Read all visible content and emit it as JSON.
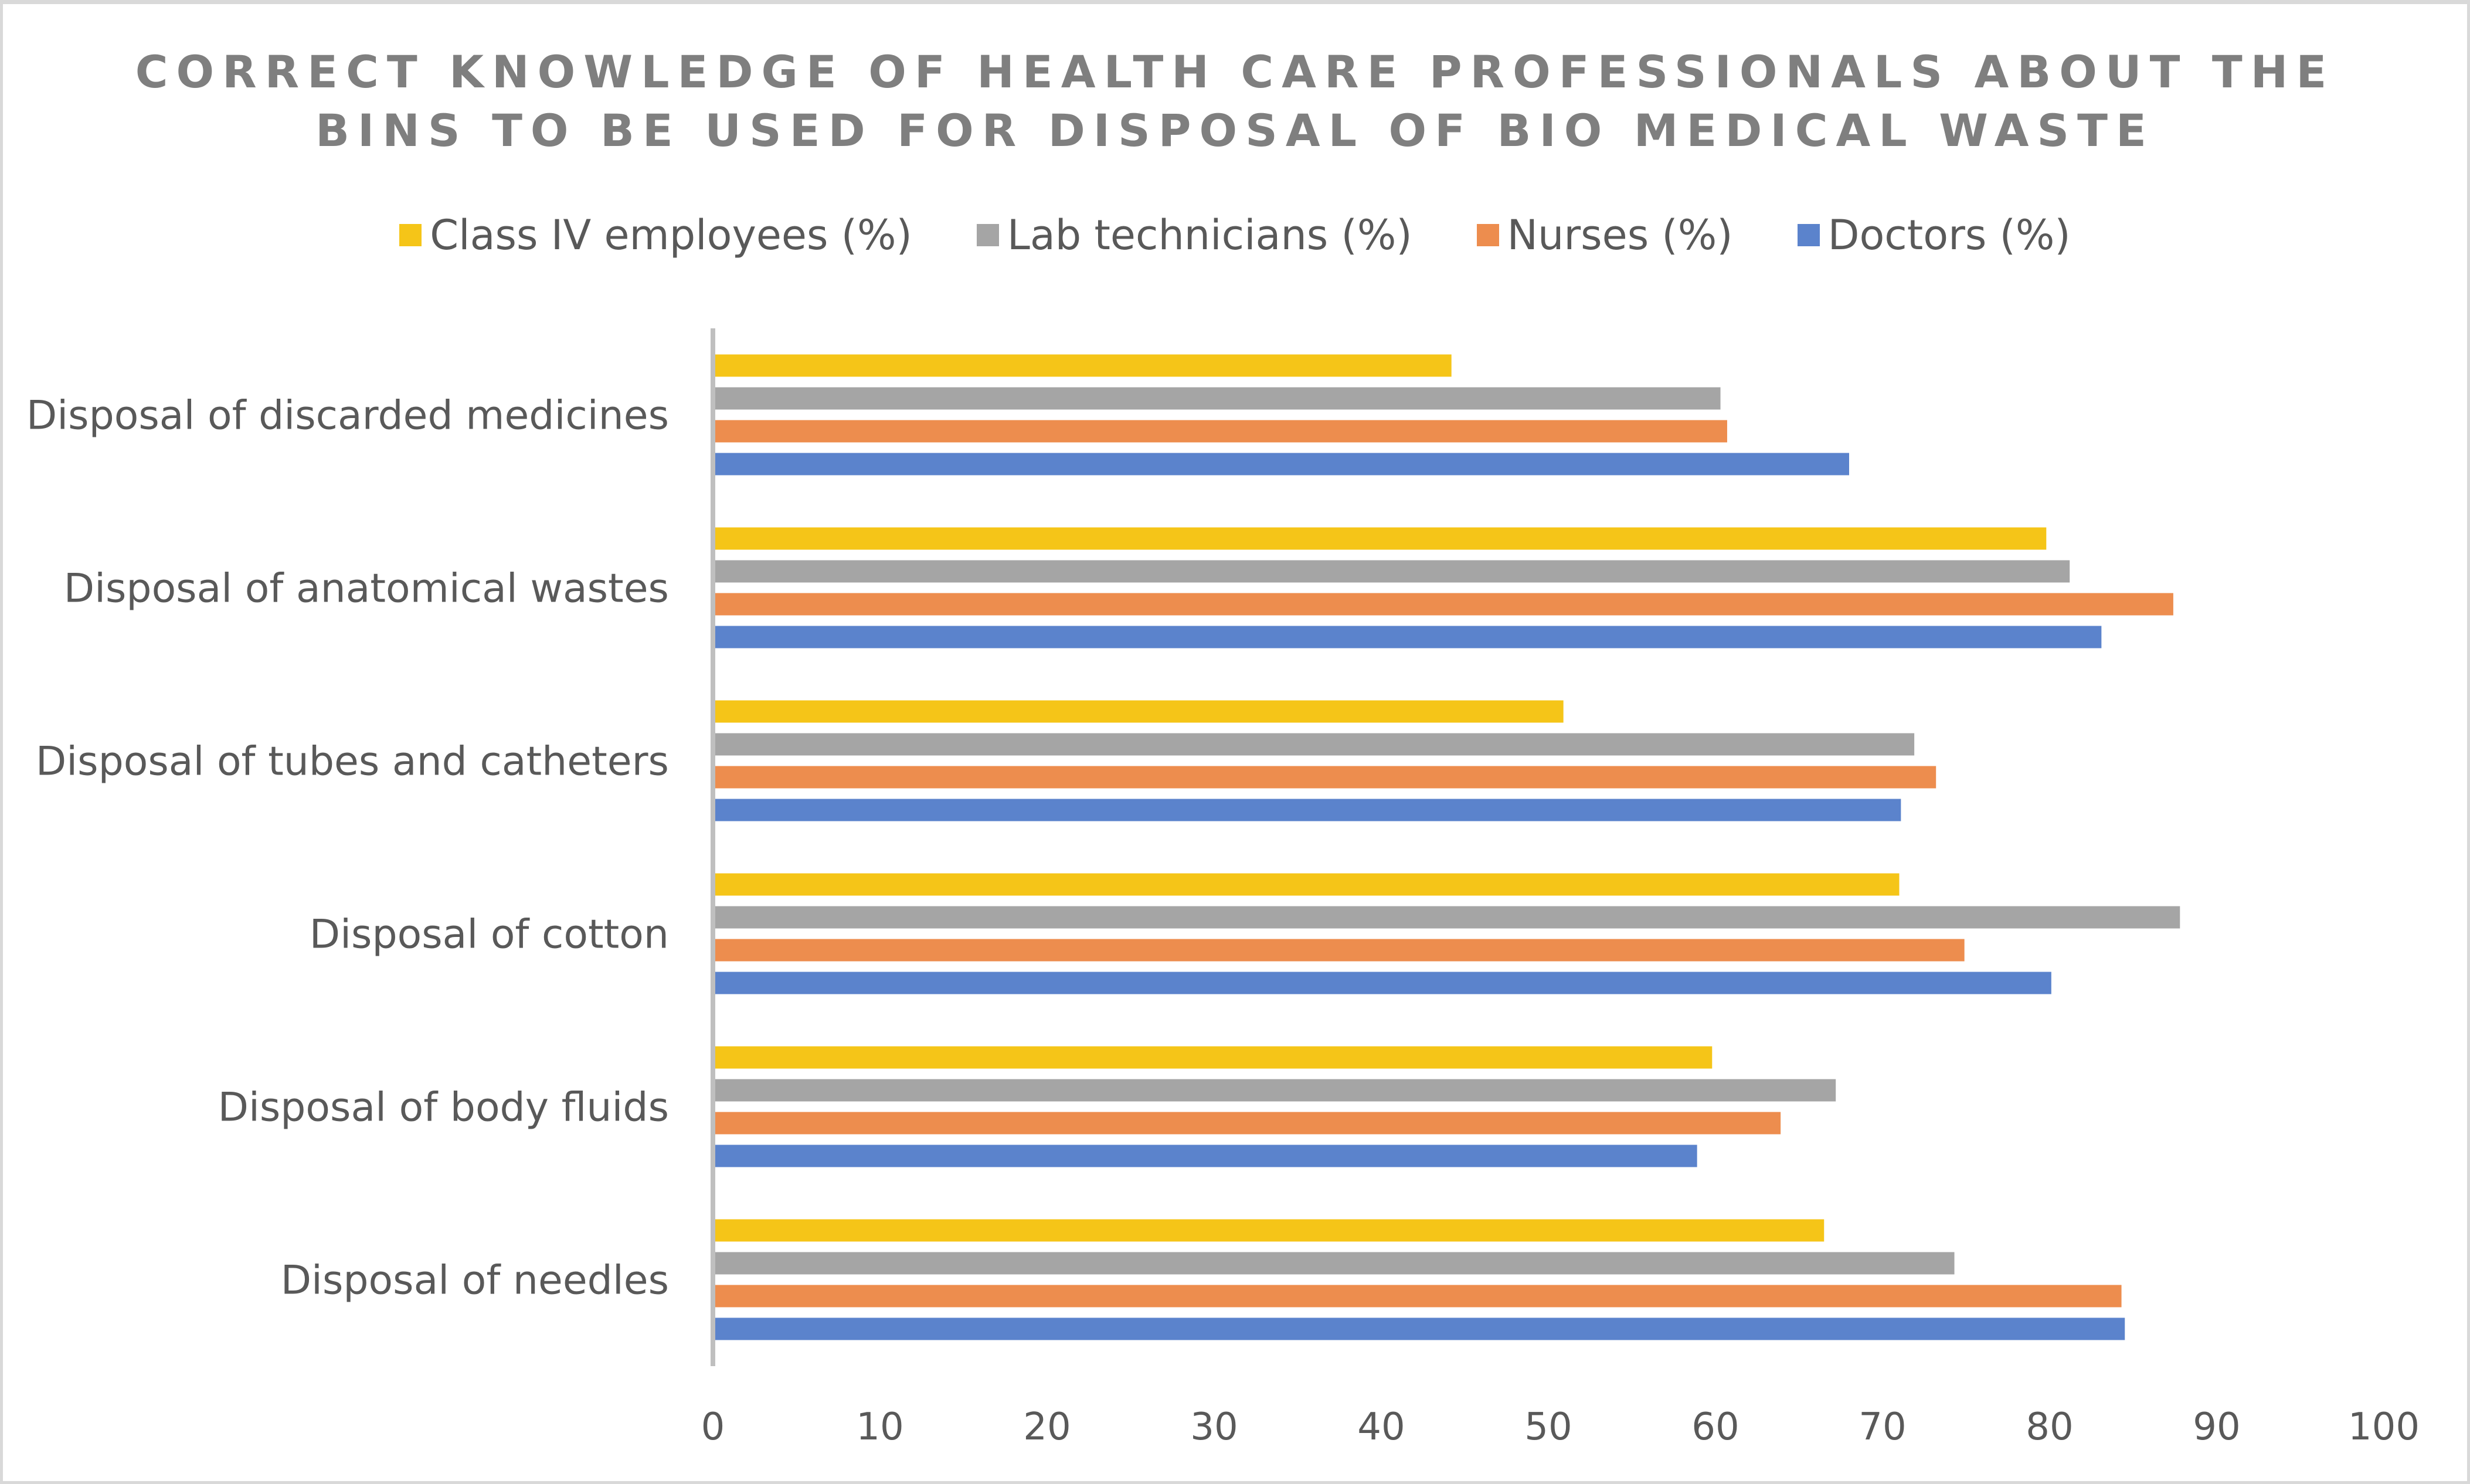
{
  "chart_data": {
    "type": "bar",
    "orientation": "horizontal",
    "title": "CORRECT KNOWLEDGE OF HEALTH CARE PROFESSIONALS ABOUT THE BINS TO BE USED FOR DISPOSAL OF BIO MEDICAL WASTE",
    "title_lines": [
      "CORRECT KNOWLEDGE OF HEALTH CARE PROFESSIONALS ABOUT THE",
      "BINS TO BE USED FOR DISPOSAL OF BIO MEDICAL WASTE"
    ],
    "xlabel": "",
    "ylabel": "",
    "xlim": [
      0,
      100
    ],
    "xticks": [
      0,
      10,
      20,
      30,
      40,
      50,
      60,
      70,
      80,
      90,
      100
    ],
    "grid": false,
    "legend_position": "top",
    "categories": [
      "Disposal of discarded medicines",
      "Disposal of anatomical wastes",
      "Disposal of tubes and catheters",
      "Disposal of cotton",
      "Disposal of body fluids",
      "Disposal of needles"
    ],
    "series": [
      {
        "name": "Class IV employees (%)",
        "color": "#f5c518",
        "values": [
          44.2,
          79.8,
          50.9,
          71.0,
          59.8,
          66.5
        ]
      },
      {
        "name": "Lab technicians (%)",
        "color": "#a5a5a5",
        "values": [
          60.3,
          81.2,
          71.9,
          87.8,
          67.2,
          74.3
        ]
      },
      {
        "name": "Nurses (%)",
        "color": "#ed8d4e",
        "values": [
          60.7,
          87.4,
          73.2,
          74.9,
          63.9,
          84.3
        ]
      },
      {
        "name": "Doctors (%)",
        "color": "#5b83cc",
        "values": [
          68.0,
          83.1,
          71.1,
          80.1,
          58.9,
          84.5
        ]
      }
    ]
  }
}
